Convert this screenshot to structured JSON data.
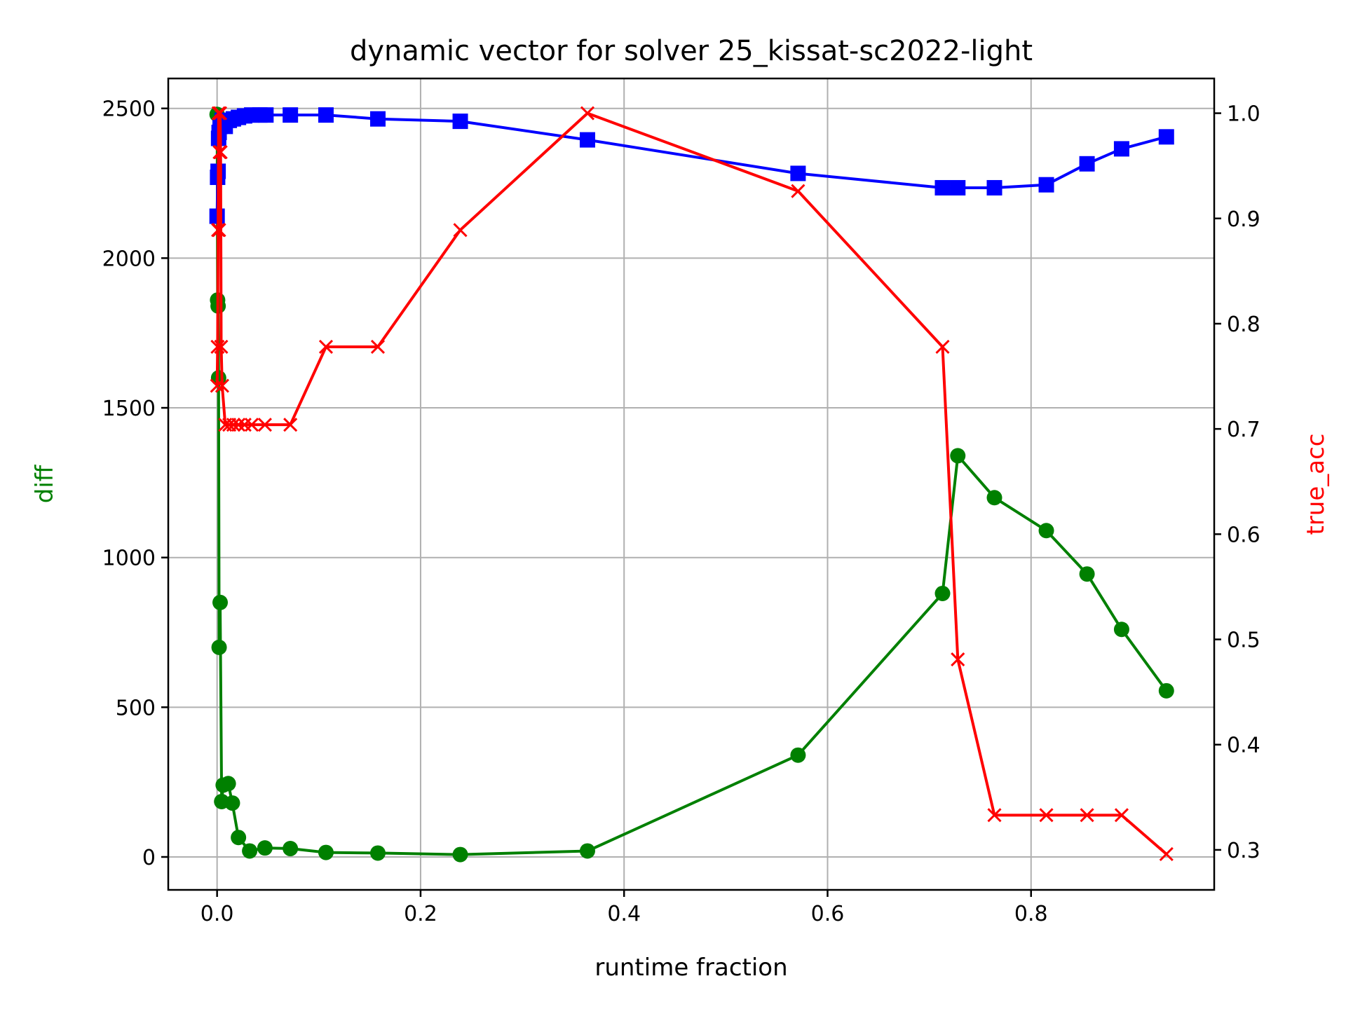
{
  "chart_data": {
    "type": "line",
    "title": "dynamic vector for solver 25_kissat-sc2022-light",
    "xlabel": "runtime fraction",
    "ylabel_left": "diff",
    "ylabel_right": "true_acc",
    "xlim": [
      -0.048,
      0.98
    ],
    "ylim_left": [
      -110,
      2600
    ],
    "ylim_right": [
      0.262,
      1.033
    ],
    "x_ticks": [
      0.0,
      0.2,
      0.4,
      0.6,
      0.8
    ],
    "x_tick_labels": [
      "0.0",
      "0.2",
      "0.4",
      "0.6",
      "0.8"
    ],
    "y_left_ticks": [
      0,
      500,
      1000,
      1500,
      2000,
      2500
    ],
    "y_left_tick_labels": [
      "0",
      "500",
      "1000",
      "1500",
      "2000",
      "2500"
    ],
    "y_right_ticks": [
      0.3,
      0.4,
      0.5,
      0.6,
      0.7,
      0.8,
      0.9,
      1.0
    ],
    "y_right_tick_labels": [
      "0.3",
      "0.4",
      "0.5",
      "0.6",
      "0.7",
      "0.8",
      "0.9",
      "1.0"
    ],
    "grid": true,
    "colors": {
      "diff": "#008000",
      "blue_series": "#0000ff",
      "true_acc": "#ff0000"
    },
    "series": [
      {
        "axis": "left",
        "color": "#008000",
        "marker": "circle",
        "x": [
          0.0,
          0.0005,
          0.001,
          0.0015,
          0.002,
          0.003,
          0.0045,
          0.006,
          0.011,
          0.015,
          0.021,
          0.032,
          0.047,
          0.072,
          0.107,
          0.158,
          0.239,
          0.364,
          0.571,
          0.713,
          0.728,
          0.764,
          0.815,
          0.855,
          0.889,
          0.933
        ],
        "values": [
          2480,
          1860,
          1840,
          1600,
          700,
          850,
          185,
          240,
          245,
          180,
          65,
          20,
          30,
          28,
          15,
          13,
          8,
          20,
          340,
          880,
          1340,
          1200,
          1090,
          945,
          760,
          555
        ]
      },
      {
        "axis": "left",
        "color": "#0000ff",
        "marker": "square",
        "x": [
          0.0,
          0.0005,
          0.001,
          0.0015,
          0.002,
          0.003,
          0.005,
          0.008,
          0.012,
          0.016,
          0.021,
          0.027,
          0.034,
          0.042,
          0.048,
          0.072,
          0.107,
          0.158,
          0.239,
          0.364,
          0.571,
          0.713,
          0.728,
          0.764,
          0.815,
          0.855,
          0.889,
          0.933
        ],
        "values": [
          2140,
          2270,
          2290,
          2400,
          2420,
          2440,
          2460,
          2440,
          2460,
          2465,
          2470,
          2475,
          2478,
          2478,
          2478,
          2478,
          2478,
          2465,
          2457,
          2395,
          2283,
          2235,
          2235,
          2235,
          2245,
          2315,
          2365,
          2405
        ]
      },
      {
        "axis": "right",
        "color": "#ff0000",
        "marker": "x",
        "x": [
          0.0,
          0.0005,
          0.001,
          0.0015,
          0.002,
          0.0025,
          0.003,
          0.0035,
          0.004,
          0.005,
          0.008,
          0.012,
          0.016,
          0.021,
          0.027,
          0.034,
          0.047,
          0.072,
          0.107,
          0.158,
          0.239,
          0.364,
          0.571,
          0.713,
          0.728,
          0.764,
          0.815,
          0.855,
          0.889,
          0.933
        ],
        "values": [
          0.741,
          0.778,
          0.889,
          1.0,
          0.889,
          0.963,
          1.0,
          0.963,
          0.778,
          0.741,
          0.704,
          0.704,
          0.704,
          0.704,
          0.704,
          0.704,
          0.704,
          0.704,
          0.778,
          0.778,
          0.889,
          1.0,
          0.926,
          0.778,
          0.481,
          0.333,
          0.333,
          0.333,
          0.333,
          0.296
        ]
      }
    ]
  }
}
